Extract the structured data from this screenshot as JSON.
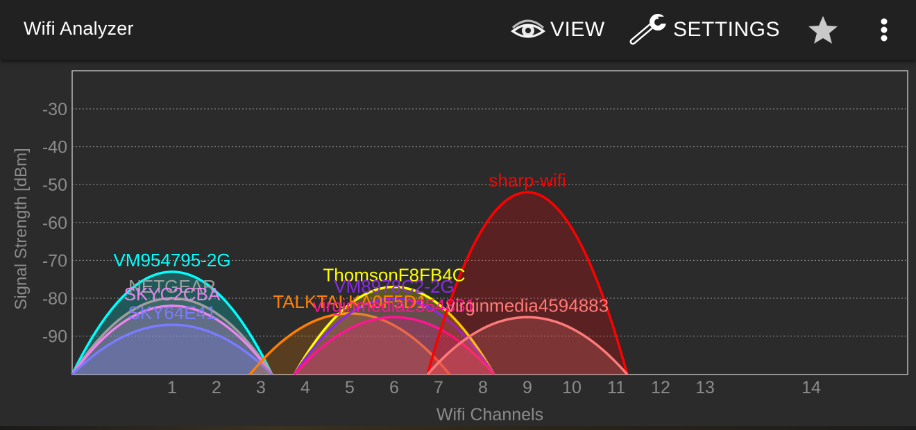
{
  "app": {
    "title": "Wifi Analyzer"
  },
  "toolbar": {
    "view_label": "VIEW",
    "view_icon": "eye-icon",
    "settings_label": "SETTINGS",
    "settings_icon": "wrench-icon",
    "favorite_icon": "star-icon",
    "overflow_icon": "more-vert-icon"
  },
  "colors": {
    "background": "#2b2b2b",
    "toolbar": "#212121",
    "axis_text": "#8c8c8c",
    "grid": "#9a9a9a"
  },
  "chart_data": {
    "type": "area",
    "xlabel": "Wifi Channels",
    "ylabel": "Signal Strength [dBm]",
    "ylim": [
      -100,
      -20
    ],
    "yticks": [
      -30,
      -40,
      -50,
      -60,
      -70,
      -80,
      -90
    ],
    "xticks": [
      1,
      2,
      3,
      4,
      5,
      6,
      7,
      8,
      9,
      10,
      11,
      12,
      13,
      14
    ],
    "grid": true,
    "series": [
      {
        "name": "VM954795-2G",
        "channel": 1,
        "signal": -73,
        "color": "#00ffff"
      },
      {
        "name": "NETGEAR",
        "channel": 1,
        "signal": -80,
        "color": "#9e9e9e"
      },
      {
        "name": "SKYC2CBA",
        "channel": 1,
        "signal": -82,
        "color": "#ee82ee"
      },
      {
        "name": "SKY64E41",
        "channel": 1,
        "signal": -87,
        "color": "#7b7bff"
      },
      {
        "name": "TALKTALKA0F5D1",
        "channel": 5,
        "signal": -84,
        "color": "#ff7f00"
      },
      {
        "name": "ThomsonF8FB4C",
        "channel": 6,
        "signal": -77,
        "color": "#ffff00"
      },
      {
        "name": "VM8978C2-2G",
        "channel": 6,
        "signal": -80,
        "color": "#8a2be2"
      },
      {
        "name": "virginmedia2354831",
        "channel": 6,
        "signal": -85,
        "color": "#ff1493"
      },
      {
        "name": "sharp-wifi",
        "channel": 9,
        "signal": -52,
        "color": "#ff0000"
      },
      {
        "name": "virginmedia4594883",
        "channel": 9,
        "signal": -85,
        "color": "#ff7a7a"
      }
    ]
  }
}
